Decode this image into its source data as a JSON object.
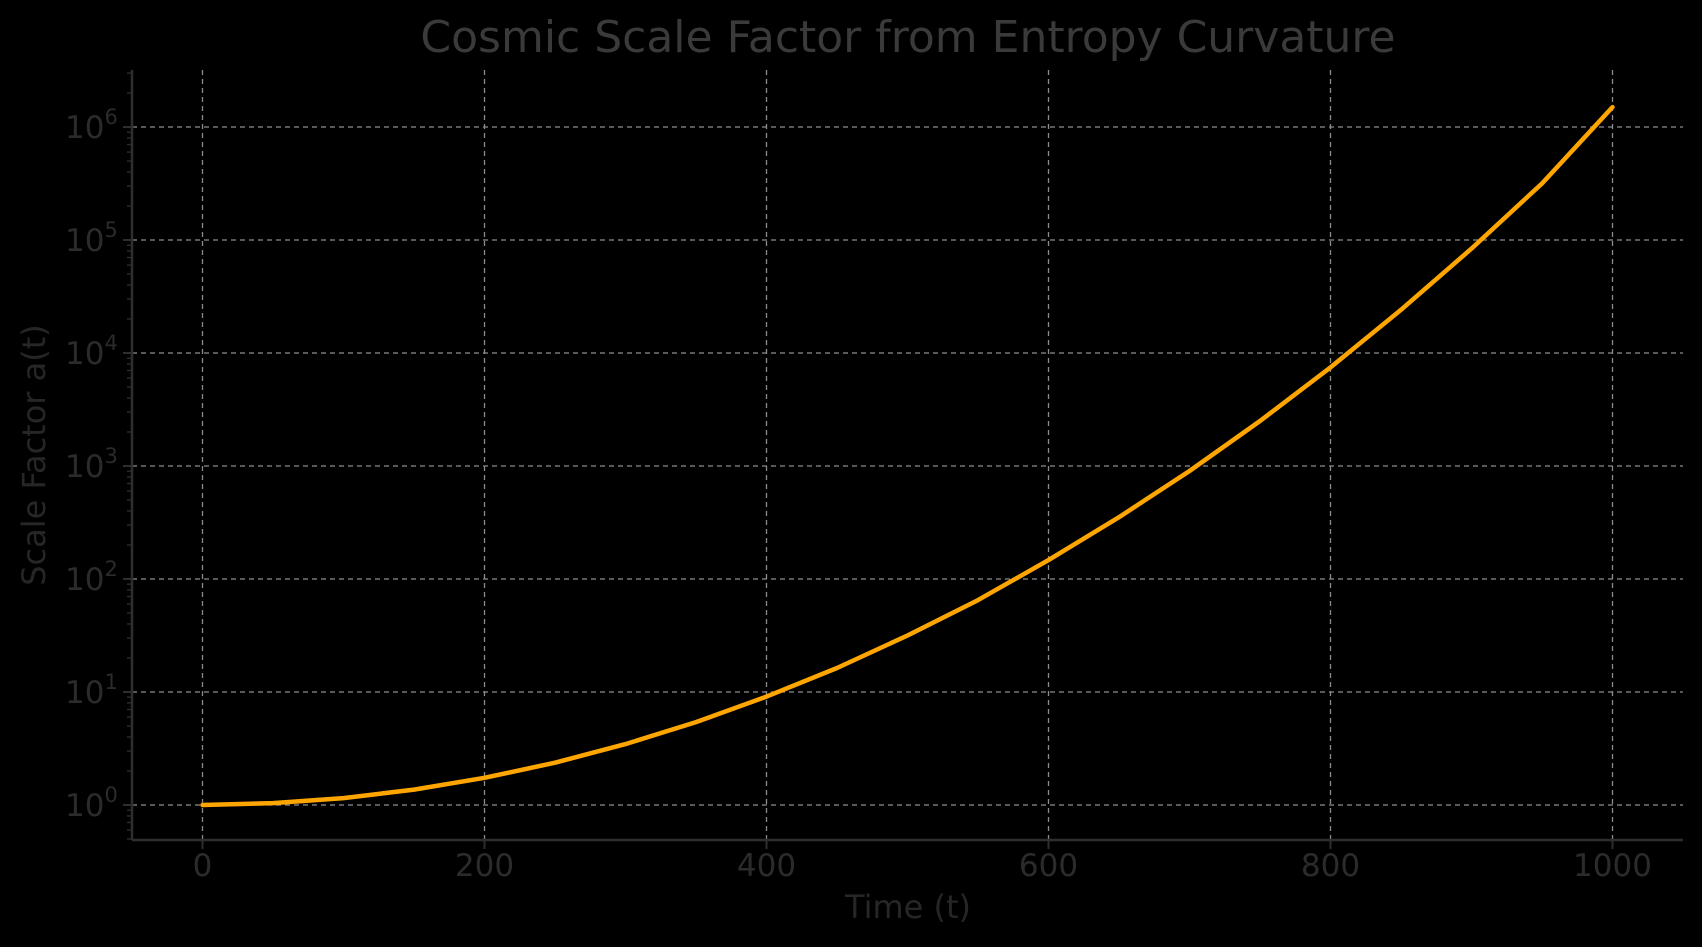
{
  "chart_data": {
    "type": "line",
    "title": "Cosmic Scale Factor from Entropy Curvature",
    "xlabel": "Time (t)",
    "ylabel": "Scale Factor a(t)",
    "yscale": "log",
    "xlim": [
      -50,
      1050
    ],
    "ylim": [
      0.5,
      3000000
    ],
    "grid": true,
    "x_ticks": [
      0,
      200,
      400,
      600,
      800,
      1000
    ],
    "x_tick_labels": [
      "0",
      "200",
      "400",
      "600",
      "800",
      "1000"
    ],
    "y_ticks": [
      1,
      10,
      100,
      1000,
      10000,
      100000,
      1000000
    ],
    "y_tick_labels": [
      {
        "base": "10",
        "exp": "0"
      },
      {
        "base": "10",
        "exp": "1"
      },
      {
        "base": "10",
        "exp": "2"
      },
      {
        "base": "10",
        "exp": "3"
      },
      {
        "base": "10",
        "exp": "4"
      },
      {
        "base": "10",
        "exp": "5"
      },
      {
        "base": "10",
        "exp": "6"
      }
    ],
    "series": [
      {
        "color": "#FFA500",
        "x": [
          0,
          50,
          100,
          150,
          200,
          250,
          300,
          350,
          400,
          450,
          500,
          550,
          600,
          650,
          700,
          750,
          800,
          850,
          900,
          950,
          1000
        ],
        "y": [
          1,
          1.04,
          1.15,
          1.37,
          1.74,
          2.37,
          3.46,
          5.41,
          9.1,
          16.3,
          31.6,
          65,
          147,
          352,
          903,
          2500,
          7450,
          24100,
          84000,
          316000,
          1500000
        ]
      }
    ]
  }
}
